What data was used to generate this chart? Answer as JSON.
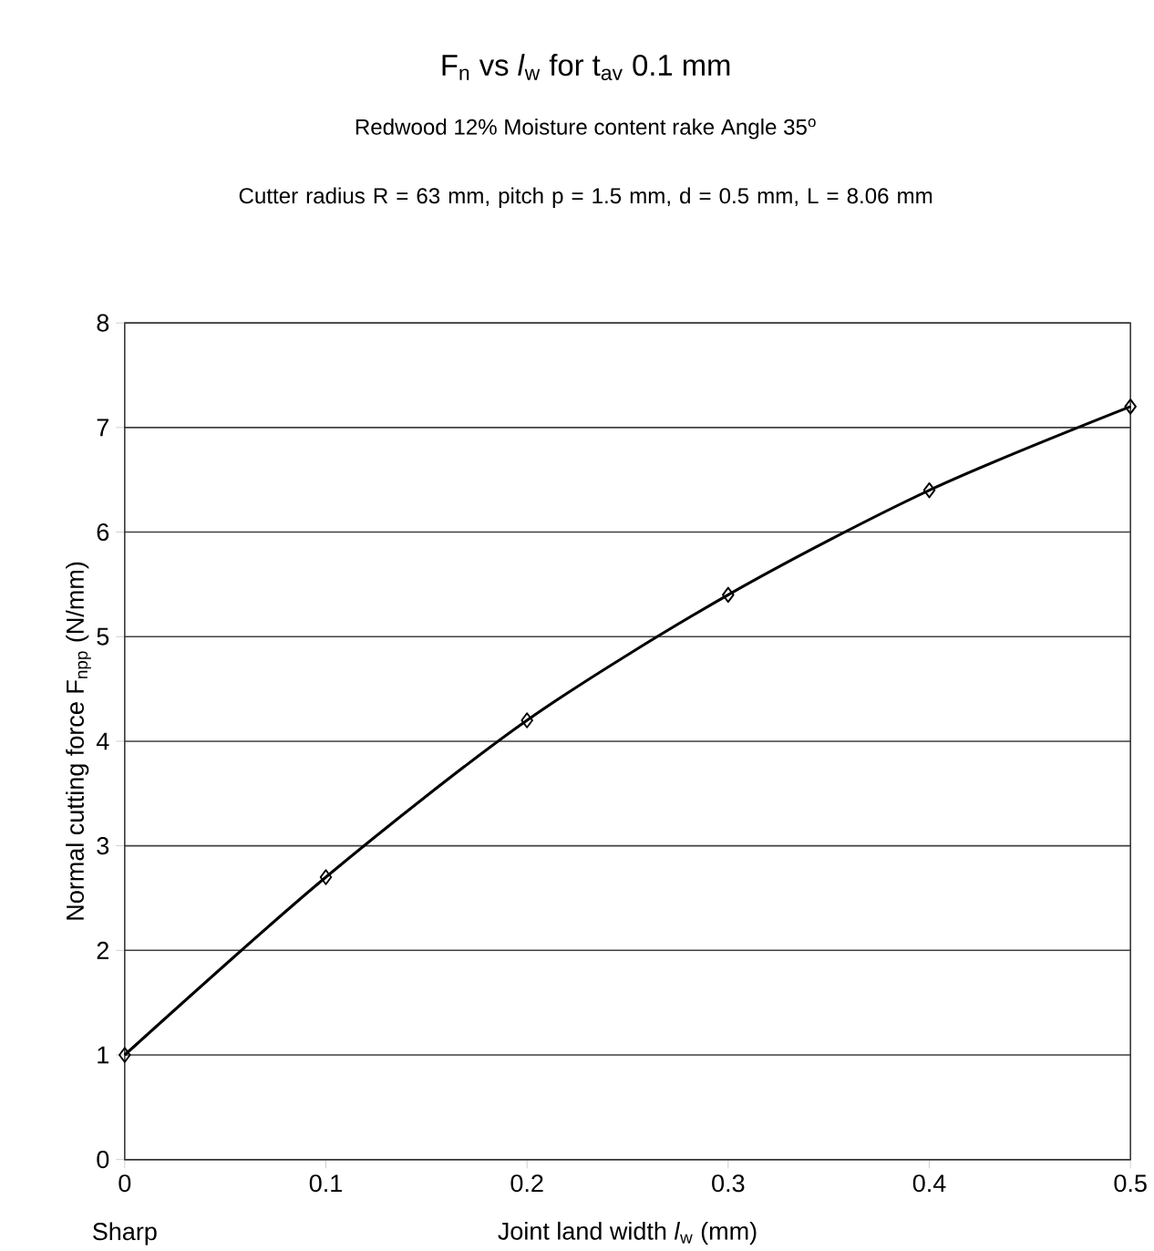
{
  "chart_data": {
    "type": "line",
    "title": "F$_{n}$ vs *l*$_{w}$ for t$_{av}$ 0.1 mm",
    "subtitle": "Redwood 12% Moisture content rake Angle 35$^{o}$",
    "annotations": [
      "Cutter radius R = 63 mm,  pitch p = 1.5 mm, d = 0.5 mm, L = 8.06 mm",
      "Sharp"
    ],
    "xlabel": "Joint land width *l*$_{w}$ (mm)",
    "ylabel": "Normal cutting force F$_{npp}$ (N/mm)",
    "x": [
      0,
      0.1,
      0.2,
      0.3,
      0.4,
      0.5
    ],
    "series": [
      {
        "color": "#000000",
        "values": [
          1,
          2.7,
          4.2,
          5.4,
          6.4,
          7.2
        ]
      }
    ],
    "xlim": [
      0,
      0.5
    ],
    "ylim": [
      0,
      8
    ],
    "xticks": [
      0,
      0.1,
      0.2,
      0.3,
      0.4,
      0.5
    ],
    "yticks": [
      0,
      1,
      2,
      3,
      4,
      5,
      6,
      7,
      8
    ],
    "grid": "y",
    "marker": "diamond",
    "line_style": "solid"
  }
}
